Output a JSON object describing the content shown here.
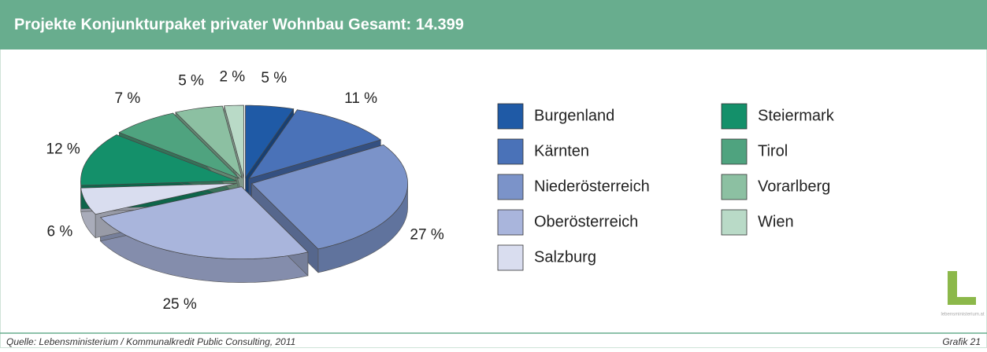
{
  "chart_data": {
    "type": "pie",
    "title": "Projekte Konjunkturpaket privater Wohnbau Gesamt: 14.399",
    "categories": [
      "Burgenland",
      "Kärnten",
      "Niederösterreich",
      "Oberösterreich",
      "Salzburg",
      "Steiermark",
      "Tirol",
      "Vorarlberg",
      "Wien"
    ],
    "values": [
      5,
      11,
      27,
      25,
      6,
      12,
      7,
      5,
      2
    ],
    "value_labels": [
      "5 %",
      "11 %",
      "27 %",
      "25 %",
      "6 %",
      "12 %",
      "7 %",
      "5 %",
      "2 %"
    ],
    "colors": [
      "#1f5aa6",
      "#4a72b8",
      "#7b93c9",
      "#a9b5dc",
      "#d9ddef",
      "#14906a",
      "#4fa37f",
      "#8cc0a2",
      "#b9dac7"
    ],
    "source": "Quelle: Lebensministerium / Kommunalkredit Public Consulting, 2011",
    "figure": "Grafik 21",
    "logo_text": "lebensministerium.at"
  }
}
